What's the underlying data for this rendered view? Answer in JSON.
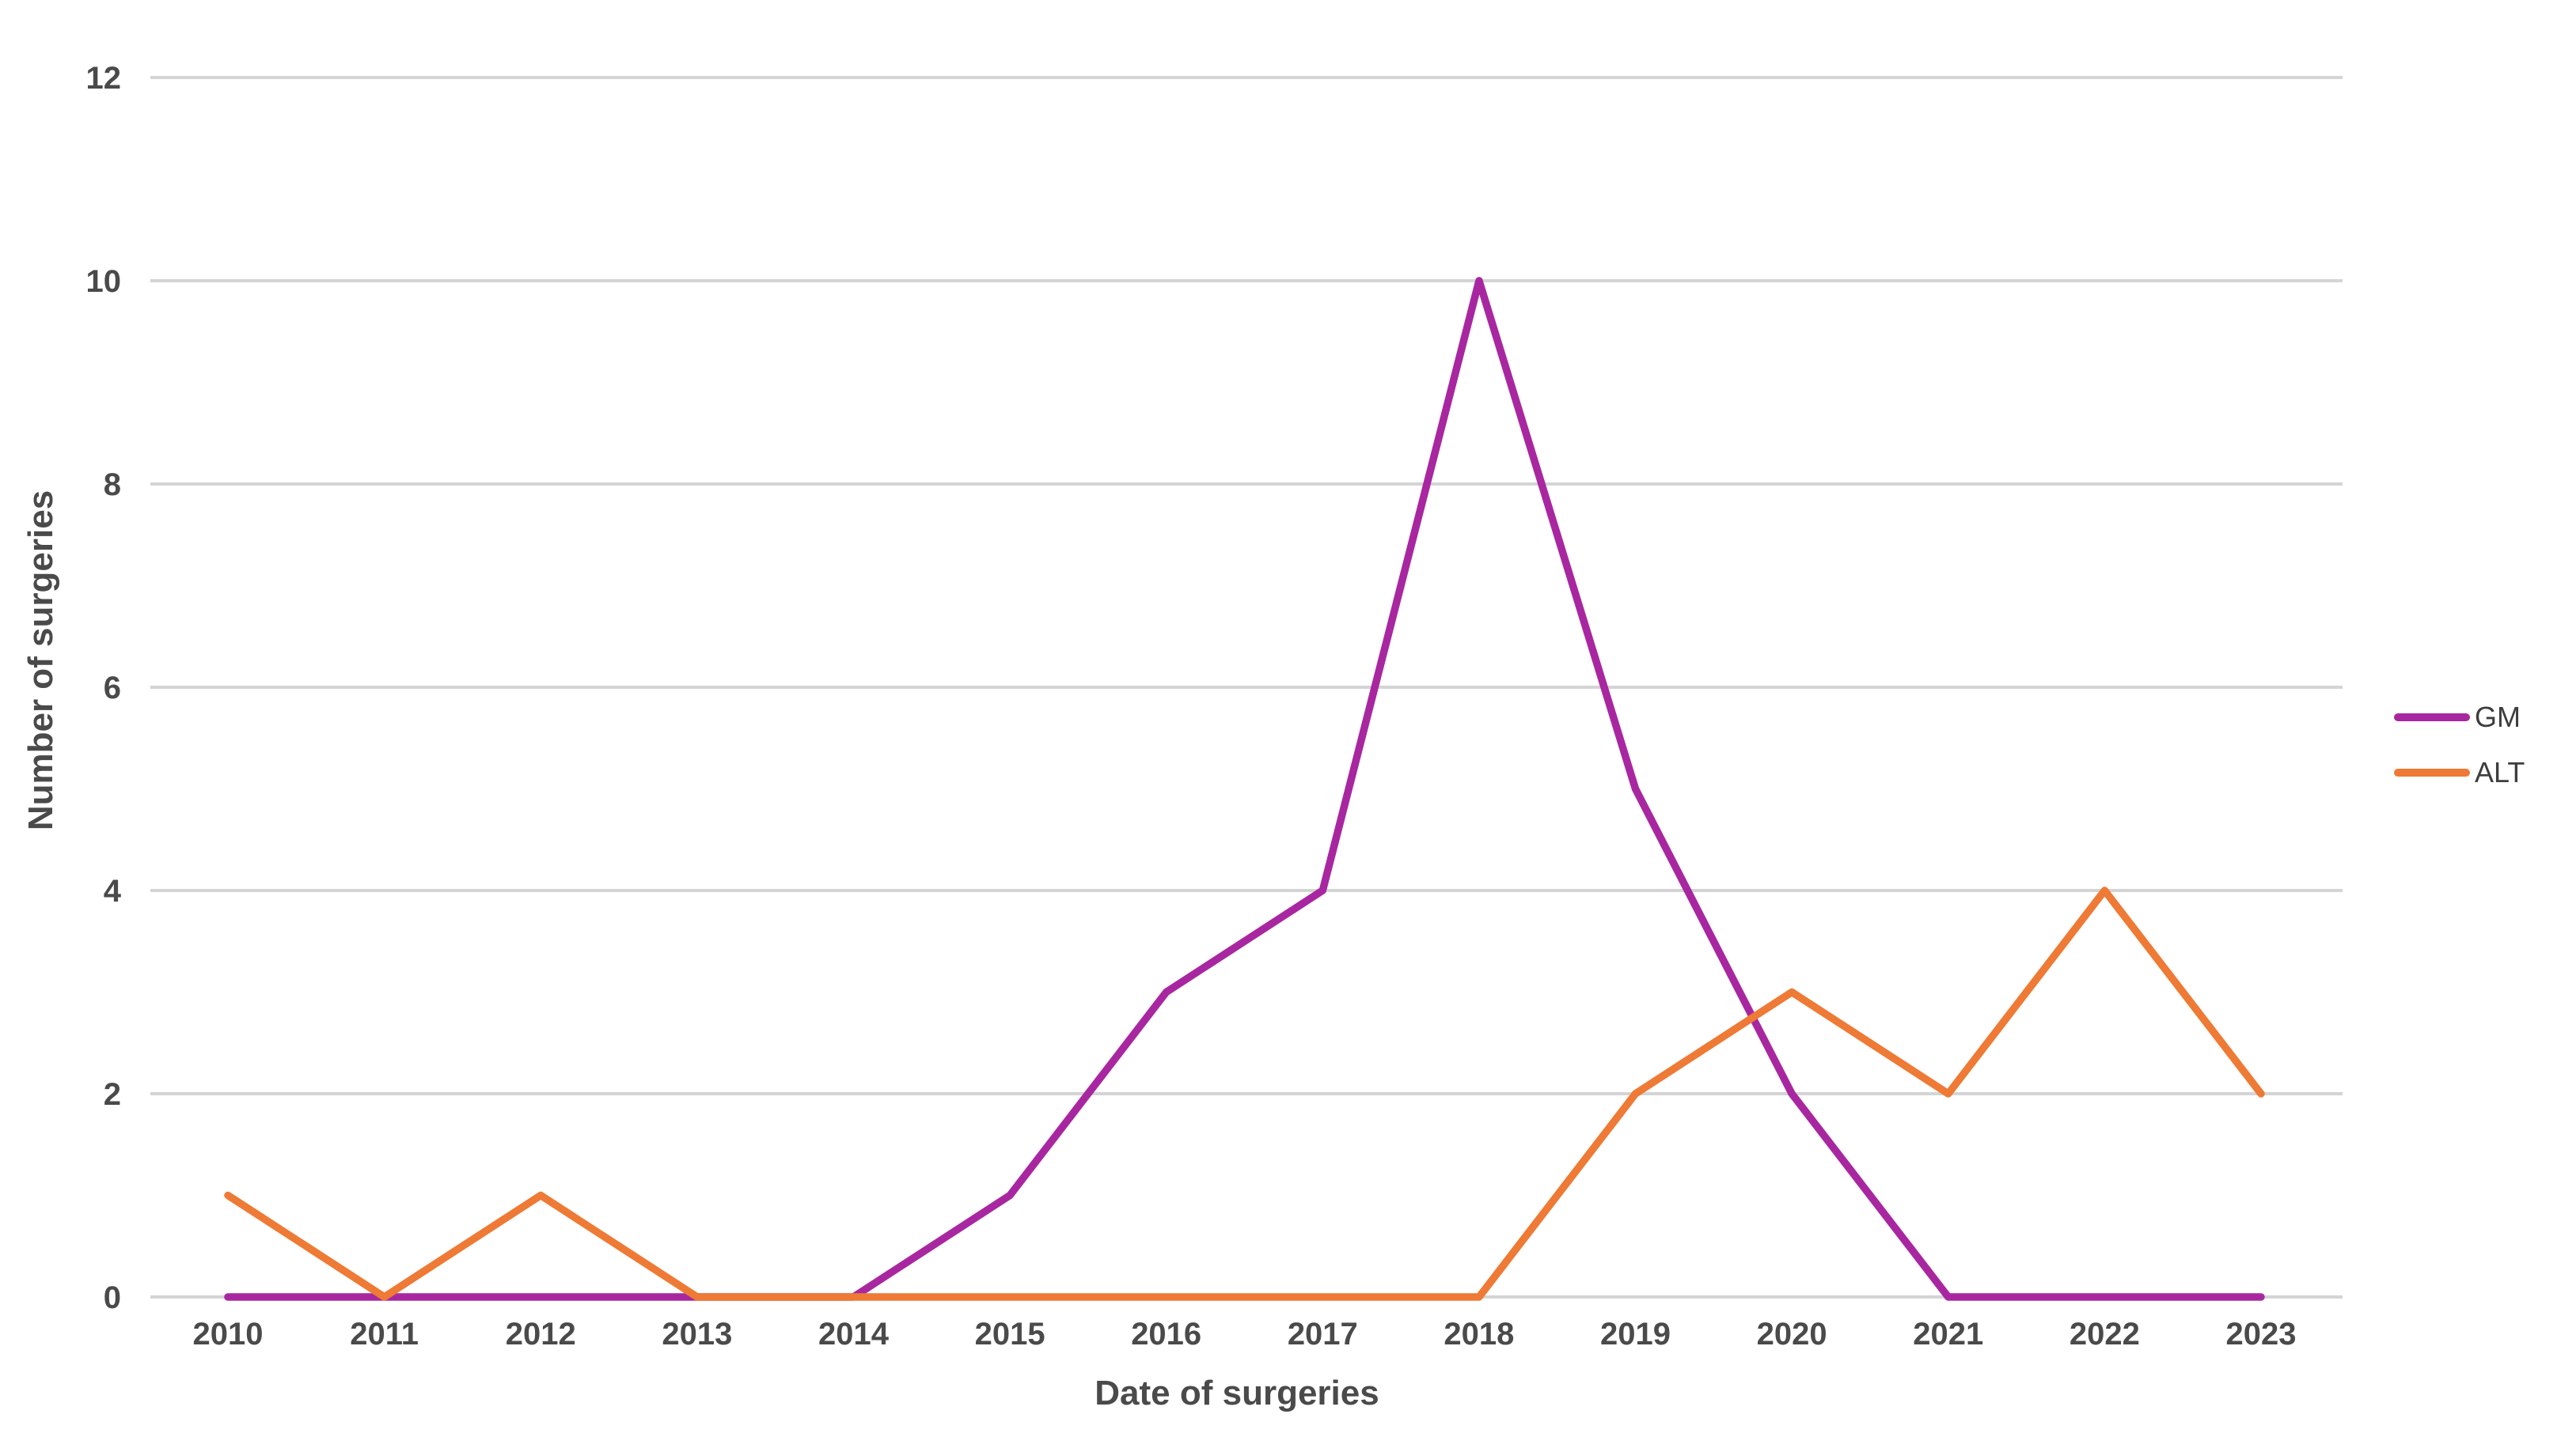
{
  "chart_data": {
    "type": "line",
    "x": [
      "2010",
      "2011",
      "2012",
      "2013",
      "2014",
      "2015",
      "2016",
      "2017",
      "2018",
      "2019",
      "2020",
      "2021",
      "2022",
      "2023"
    ],
    "series": [
      {
        "name": "GM",
        "color": "#A827A0",
        "values": [
          0,
          0,
          0,
          0,
          0,
          1,
          3,
          4,
          10,
          5,
          2,
          0,
          0,
          0
        ]
      },
      {
        "name": "ALT",
        "color": "#EE7A35",
        "values": [
          1,
          0,
          1,
          0,
          0,
          0,
          0,
          0,
          0,
          2,
          3,
          2,
          4,
          2
        ]
      }
    ],
    "title": "",
    "xlabel": "Date of surgeries",
    "ylabel": "Number of surgeries",
    "ylim": [
      0,
      12
    ],
    "ytick_step": 2,
    "ytick_labels": [
      "0",
      "2",
      "4",
      "6",
      "8",
      "10",
      "12"
    ],
    "grid": "horizontal",
    "legend_position": "right"
  },
  "style": {
    "grid_color": "#D4D4D4",
    "tick_text_color": "#4a4a4a",
    "legend_text_color": "#3d3d3d",
    "background": "#FFFFFF"
  },
  "legend": {
    "items": [
      {
        "label": "GM"
      },
      {
        "label": "ALT"
      }
    ]
  }
}
